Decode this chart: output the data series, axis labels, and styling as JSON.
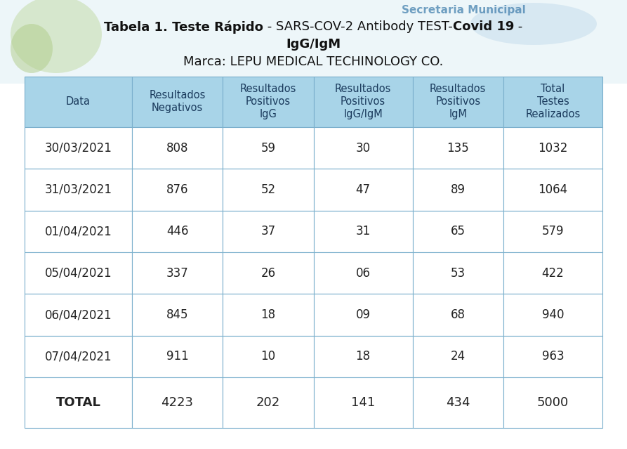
{
  "title_parts_line1": [
    {
      "text": "Tabela 1. Teste Rápido",
      "bold": true
    },
    {
      "text": " - SARS-COV-2 Antibody TEST-",
      "bold": false
    },
    {
      "text": "Covid 19",
      "bold": true
    },
    {
      "text": " -",
      "bold": false
    }
  ],
  "title_line2": "IgG/IgM",
  "title_line2_bold": true,
  "subtitle": "Marca: LEPU MEDICAL TECHINOLOGY CO.",
  "header_bg": "#a8d4e8",
  "header_text_color": "#1a3a5c",
  "col_headers": [
    "Data",
    "Resultados\nNegativos",
    "Resultados\nPositivos\nIgG",
    "Resultados\nPositivos\nIgG/IgM",
    "Resultados\nPositivos\nIgM",
    "Total\nTestes\nRealizados"
  ],
  "rows": [
    [
      "30/03/2021",
      "808",
      "59",
      "30",
      "135",
      "1032"
    ],
    [
      "31/03/2021",
      "876",
      "52",
      "47",
      "89",
      "1064"
    ],
    [
      "01/04/2021",
      "446",
      "37",
      "31",
      "65",
      "579"
    ],
    [
      "05/04/2021",
      "337",
      "26",
      "06",
      "53",
      "422"
    ],
    [
      "06/04/2021",
      "845",
      "18",
      "09",
      "68",
      "940"
    ],
    [
      "07/04/2021",
      "911",
      "10",
      "18",
      "24",
      "963"
    ]
  ],
  "total_row": [
    "TOTAL",
    "4223",
    "202",
    "141",
    "434",
    "5000"
  ],
  "border_color": "#7aafcc",
  "text_color": "#222222",
  "bg_color": "#ffffff",
  "title_color": "#111111",
  "bg_top_color": "#d6e8f0",
  "col_widths_rel": [
    1.3,
    1.1,
    1.1,
    1.2,
    1.1,
    1.2
  ],
  "header_fontsize": 10.5,
  "data_fontsize": 12,
  "total_fontsize": 13,
  "title_fontsize": 13,
  "subtitle_fontsize": 13
}
